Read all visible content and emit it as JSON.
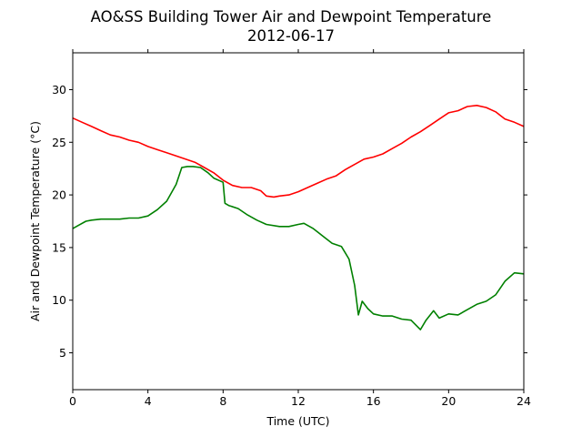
{
  "chart_data": {
    "type": "line",
    "title": "AO&SS Building Tower Air and Dewpoint Temperature",
    "subtitle": "2012-06-17",
    "xlabel": "Time (UTC)",
    "ylabel": "Air and Dewpoint Temperature (°C)",
    "xlim": [
      0,
      24
    ],
    "ylim": [
      1.5,
      33.5
    ],
    "x_ticks": [
      0,
      4,
      8,
      12,
      16,
      20,
      24
    ],
    "y_ticks": [
      5,
      10,
      15,
      20,
      25,
      30
    ],
    "grid": false,
    "series": [
      {
        "color": "#ff0000",
        "x": [
          0,
          0.5,
          1,
          1.5,
          2,
          2.5,
          3,
          3.5,
          4,
          4.5,
          5,
          5.5,
          6,
          6.5,
          7,
          7.5,
          8,
          8.5,
          9,
          9.5,
          10,
          10.3,
          10.7,
          11,
          11.5,
          12,
          12.5,
          13,
          13.5,
          14,
          14.5,
          15,
          15.5,
          16,
          16.5,
          17,
          17.5,
          18,
          18.5,
          19,
          19.5,
          20,
          20.5,
          21,
          21.5,
          22,
          22.5,
          23,
          23.5,
          24
        ],
        "y": [
          27.3,
          26.9,
          26.5,
          26.1,
          25.7,
          25.5,
          25.2,
          25.0,
          24.6,
          24.3,
          24.0,
          23.7,
          23.4,
          23.1,
          22.6,
          22.1,
          21.4,
          20.9,
          20.7,
          20.7,
          20.4,
          19.9,
          19.8,
          19.9,
          20.0,
          20.3,
          20.7,
          21.1,
          21.5,
          21.8,
          22.4,
          22.9,
          23.4,
          23.6,
          23.9,
          24.4,
          24.9,
          25.5,
          26.0,
          26.6,
          27.2,
          27.8,
          28.0,
          28.4,
          28.5,
          28.3,
          27.9,
          27.2,
          26.9,
          26.5
        ]
      },
      {
        "color": "#008000",
        "x": [
          0,
          0.3,
          0.7,
          1,
          1.5,
          2,
          2.5,
          3,
          3.5,
          4,
          4.5,
          5,
          5.5,
          5.8,
          6.1,
          6.4,
          6.8,
          7.2,
          7.5,
          8,
          8.1,
          8.3,
          8.8,
          9.3,
          9.8,
          10.3,
          11,
          11.5,
          12,
          12.3,
          12.8,
          13.3,
          13.8,
          14.3,
          14.7,
          15,
          15.2,
          15.4,
          15.7,
          16,
          16.5,
          17,
          17.5,
          18,
          18.5,
          18.8,
          19.2,
          19.5,
          20,
          20.5,
          21,
          21.5,
          22,
          22.5,
          23,
          23.5,
          24
        ],
        "y": [
          16.8,
          17.1,
          17.5,
          17.6,
          17.7,
          17.7,
          17.7,
          17.8,
          17.8,
          18.0,
          18.6,
          19.4,
          21.0,
          22.6,
          22.7,
          22.7,
          22.6,
          22.1,
          21.6,
          21.2,
          19.2,
          19.0,
          18.7,
          18.1,
          17.6,
          17.2,
          17.0,
          17.0,
          17.2,
          17.3,
          16.8,
          16.1,
          15.4,
          15.1,
          13.9,
          11.4,
          8.6,
          9.9,
          9.2,
          8.7,
          8.5,
          8.5,
          8.2,
          8.1,
          7.2,
          8.1,
          9.0,
          8.3,
          8.7,
          8.6,
          9.1,
          9.6,
          9.9,
          10.5,
          11.8,
          12.6,
          12.5
        ]
      }
    ]
  }
}
